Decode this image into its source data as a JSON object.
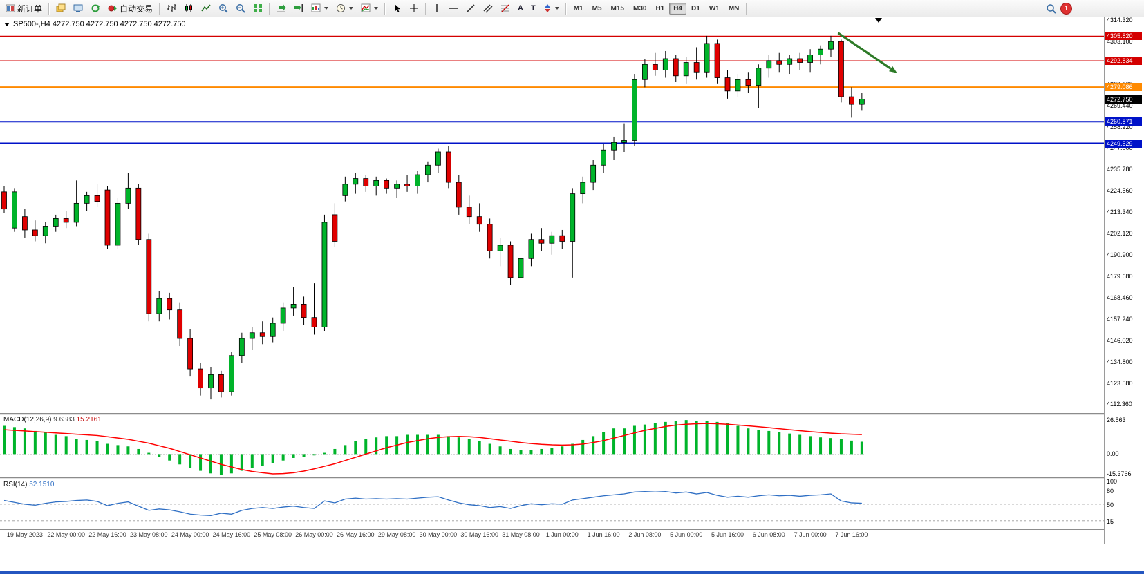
{
  "toolbar": {
    "new_order_label": "新订单",
    "auto_trading_label": "自动交易",
    "timeframes": [
      "M1",
      "M5",
      "M15",
      "M30",
      "H1",
      "H4",
      "D1",
      "W1",
      "MN"
    ],
    "active_timeframe": "H4",
    "notification_count": "1"
  },
  "chart": {
    "symbol_info": "SP500-,H4 4272.750 4272.750 4272.750 4272.750"
  },
  "chart_data": {
    "type": "candlestick",
    "symbol": "SP500-",
    "timeframe": "H4",
    "y_range": {
      "max": 4314.32,
      "min": 4109.98
    },
    "y_ticks": [
      "4314.320",
      "4303.100",
      "4291.880",
      "4280.660",
      "4269.440",
      "4258.220",
      "4247.000",
      "4235.780",
      "4224.560",
      "4213.340",
      "4202.120",
      "4190.900",
      "4179.680",
      "4168.460",
      "4157.240",
      "4146.020",
      "4134.800",
      "4123.580",
      "4112.360"
    ],
    "x_labels": [
      "19 May 2023",
      "22 May 00:00",
      "22 May 16:00",
      "23 May 08:00",
      "24 May 00:00",
      "24 May 16:00",
      "25 May 08:00",
      "26 May 00:00",
      "26 May 16:00",
      "29 May 08:00",
      "30 May 00:00",
      "30 May 16:00",
      "31 May 08:00",
      "1 Jun 00:00",
      "1 Jun 16:00",
      "2 Jun 08:00",
      "5 Jun 00:00",
      "5 Jun 16:00",
      "6 Jun 08:00",
      "7 Jun 00:00",
      "7 Jun 16:00"
    ],
    "levels": [
      {
        "price": 4305.82,
        "label": "4305.820",
        "color": "#d40000",
        "weight": 1.4
      },
      {
        "price": 4292.834,
        "label": "4292.834",
        "color": "#d40000",
        "weight": 1.4
      },
      {
        "price": 4279.086,
        "label": "4279.086",
        "color": "#ff8a00",
        "weight": 2
      },
      {
        "price": 4272.75,
        "label": "4272.750",
        "color": "#000000",
        "weight": 1
      },
      {
        "price": 4260.871,
        "label": "4260.871",
        "color": "#0012c8",
        "weight": 2
      },
      {
        "price": 4249.529,
        "label": "4249.529",
        "color": "#0012c8",
        "weight": 2
      }
    ],
    "colors": {
      "bull": "#00b42a",
      "bear": "#e00000",
      "outline": "#000000"
    },
    "candles": [
      [
        4224,
        4227,
        4213,
        4215
      ],
      [
        4205,
        4226,
        4203,
        4224
      ],
      [
        4211,
        4215,
        4200,
        4204
      ],
      [
        4204,
        4209,
        4198,
        4201
      ],
      [
        4201,
        4208,
        4197,
        4206
      ],
      [
        4206,
        4212,
        4203,
        4210
      ],
      [
        4210,
        4214,
        4205,
        4208
      ],
      [
        4208,
        4230,
        4206,
        4218
      ],
      [
        4218,
        4224,
        4214,
        4222
      ],
      [
        4222,
        4228,
        4216,
        4219
      ],
      [
        4225,
        4227,
        4194,
        4196
      ],
      [
        4196,
        4221,
        4194,
        4218
      ],
      [
        4218,
        4234,
        4215,
        4226
      ],
      [
        4226,
        4228,
        4196,
        4199
      ],
      [
        4199,
        4202,
        4156,
        4160
      ],
      [
        4160,
        4172,
        4156,
        4168
      ],
      [
        4168,
        4171,
        4157,
        4162
      ],
      [
        4162,
        4166,
        4143,
        4147
      ],
      [
        4147,
        4152,
        4127,
        4131
      ],
      [
        4131,
        4134,
        4117,
        4121
      ],
      [
        4121,
        4132,
        4115,
        4128
      ],
      [
        4128,
        4130,
        4116,
        4119
      ],
      [
        4119,
        4140,
        4117,
        4138
      ],
      [
        4138,
        4150,
        4134,
        4147
      ],
      [
        4147,
        4153,
        4141,
        4150
      ],
      [
        4150,
        4156,
        4144,
        4148
      ],
      [
        4148,
        4158,
        4145,
        4155
      ],
      [
        4155,
        4166,
        4151,
        4163
      ],
      [
        4163,
        4174,
        4159,
        4165
      ],
      [
        4165,
        4169,
        4154,
        4158
      ],
      [
        4158,
        4176,
        4149,
        4153
      ],
      [
        4153,
        4212,
        4151,
        4208
      ],
      [
        4212,
        4218,
        4195,
        4198
      ],
      [
        4222,
        4232,
        4219,
        4228
      ],
      [
        4228,
        4234,
        4223,
        4231
      ],
      [
        4231,
        4233,
        4224,
        4227
      ],
      [
        4227,
        4232,
        4222,
        4230
      ],
      [
        4230,
        4231,
        4223,
        4226
      ],
      [
        4226,
        4230,
        4221,
        4228
      ],
      [
        4228,
        4233,
        4224,
        4227
      ],
      [
        4227,
        4235,
        4223,
        4233
      ],
      [
        4233,
        4240,
        4229,
        4238
      ],
      [
        4238,
        4247,
        4234,
        4245
      ],
      [
        4245,
        4248,
        4226,
        4229
      ],
      [
        4229,
        4233,
        4212,
        4216
      ],
      [
        4216,
        4222,
        4207,
        4211
      ],
      [
        4211,
        4218,
        4203,
        4207
      ],
      [
        4207,
        4210,
        4189,
        4193
      ],
      [
        4193,
        4200,
        4185,
        4196
      ],
      [
        4196,
        4198,
        4175,
        4179
      ],
      [
        4179,
        4192,
        4174,
        4189
      ],
      [
        4189,
        4202,
        4185,
        4199
      ],
      [
        4199,
        4205,
        4193,
        4197
      ],
      [
        4197,
        4203,
        4191,
        4201
      ],
      [
        4201,
        4204,
        4194,
        4198
      ],
      [
        4198,
        4226,
        4179,
        4223
      ],
      [
        4223,
        4232,
        4218,
        4229
      ],
      [
        4229,
        4241,
        4225,
        4238
      ],
      [
        4238,
        4249,
        4234,
        4246
      ],
      [
        4246,
        4253,
        4241,
        4250
      ],
      [
        4250,
        4260,
        4245,
        4251
      ],
      [
        4251,
        4286,
        4248,
        4283
      ],
      [
        4283,
        4294,
        4279,
        4291
      ],
      [
        4291,
        4297,
        4285,
        4288
      ],
      [
        4288,
        4298,
        4284,
        4294
      ],
      [
        4294,
        4296,
        4282,
        4285
      ],
      [
        4285,
        4295,
        4281,
        4292
      ],
      [
        4292,
        4300,
        4283,
        4287
      ],
      [
        4287,
        4306,
        4284,
        4302
      ],
      [
        4302,
        4304,
        4281,
        4284
      ],
      [
        4284,
        4288,
        4273,
        4277
      ],
      [
        4277,
        4286,
        4274,
        4283
      ],
      [
        4283,
        4287,
        4276,
        4280
      ],
      [
        4280,
        4291,
        4268,
        4289
      ],
      [
        4289,
        4296,
        4284,
        4293
      ],
      [
        4293,
        4297,
        4287,
        4291
      ],
      [
        4291,
        4296,
        4286,
        4294
      ],
      [
        4294,
        4297,
        4288,
        4292
      ],
      [
        4292,
        4299,
        4287,
        4296
      ],
      [
        4296,
        4301,
        4291,
        4299
      ],
      [
        4299,
        4306,
        4295,
        4303
      ],
      [
        4303,
        4304,
        4271,
        4274
      ],
      [
        4274,
        4279,
        4263,
        4270
      ],
      [
        4270,
        4276,
        4267,
        4272.75
      ]
    ],
    "annotation_arrow": {
      "from_bar": 80.7,
      "from_price": 4307.5,
      "to_bar": 86.4,
      "to_price": 4286.5,
      "color": "#2d7a27"
    },
    "indicators": {
      "macd": {
        "label": "MACD(12,26,9)",
        "value_main": "9.6383",
        "value_signal": "15.2161",
        "axis_max": 26.563,
        "axis_min": -15.3766,
        "axis_labels": [
          "26.563",
          "0.00",
          "-15.3766"
        ],
        "hist_color": "#00b42a",
        "signal_color": "#ff0000",
        "histogram": [
          22,
          21,
          20,
          18,
          17,
          15,
          14,
          12,
          11,
          10,
          8,
          7,
          6,
          4,
          1,
          -2,
          -5,
          -8,
          -11,
          -13,
          -15,
          -16,
          -15,
          -13,
          -11,
          -9,
          -7,
          -5,
          -3,
          -2,
          -1,
          1,
          4,
          7,
          10,
          12,
          13,
          14,
          14,
          15,
          15,
          15,
          15,
          14,
          13,
          12,
          10,
          8,
          6,
          4,
          3,
          3,
          4,
          5,
          6,
          8,
          11,
          14,
          17,
          20,
          20,
          22,
          23,
          24,
          25,
          26,
          26.5,
          26,
          25.5,
          25,
          24,
          22,
          20,
          19,
          18,
          17,
          16,
          15,
          14,
          13,
          12.5,
          11.5,
          10.5,
          9.64
        ],
        "signal": [
          19,
          18.5,
          18,
          17.5,
          17,
          16.5,
          16,
          15.5,
          15,
          14.5,
          13.5,
          12.5,
          11.5,
          10,
          8.5,
          6.5,
          4.5,
          2,
          -0.5,
          -3,
          -5.5,
          -8,
          -10,
          -12,
          -13.5,
          -14.5,
          -15.4,
          -15.2,
          -14.5,
          -13.2,
          -11.5,
          -9.5,
          -7.5,
          -5,
          -2.5,
          0,
          2.5,
          5,
          7,
          9,
          10.5,
          12,
          13,
          13.5,
          13.8,
          13.5,
          13,
          12,
          11,
          10,
          9,
          8.2,
          7.6,
          7.2,
          7,
          7.2,
          7.8,
          9,
          10.5,
          12.5,
          14.5,
          16.5,
          18.5,
          20,
          21.5,
          22.5,
          23.2,
          23.6,
          23.8,
          23.6,
          23.2,
          22.6,
          22,
          21.3,
          20.6,
          19.8,
          19,
          18.2,
          17.5,
          16.9,
          16.3,
          15.8,
          15.5,
          15.2
        ]
      },
      "rsi": {
        "label": "RSI(14)",
        "value": "52.1510",
        "levels": [
          80,
          50,
          15
        ],
        "axis_labels": [
          "100",
          "80",
          "50",
          "15"
        ],
        "line_color": "#2f6fc4",
        "values": [
          58,
          54,
          50,
          48,
          52,
          55,
          56,
          58,
          59,
          56,
          47,
          52,
          55,
          46,
          37,
          40,
          38,
          34,
          29,
          27,
          26,
          31,
          29,
          37,
          41,
          43,
          41,
          44,
          46,
          43,
          41,
          57,
          53,
          61,
          63,
          61,
          62,
          61,
          62,
          61,
          63,
          65,
          66,
          59,
          53,
          49,
          47,
          43,
          45,
          41,
          47,
          51,
          49,
          51,
          50,
          59,
          62,
          65,
          68,
          70,
          72,
          76,
          77,
          76,
          77,
          74,
          76,
          72,
          75,
          69,
          65,
          67,
          65,
          68,
          70,
          68,
          69,
          67,
          69,
          70,
          72,
          57,
          53,
          52.15
        ]
      }
    }
  }
}
